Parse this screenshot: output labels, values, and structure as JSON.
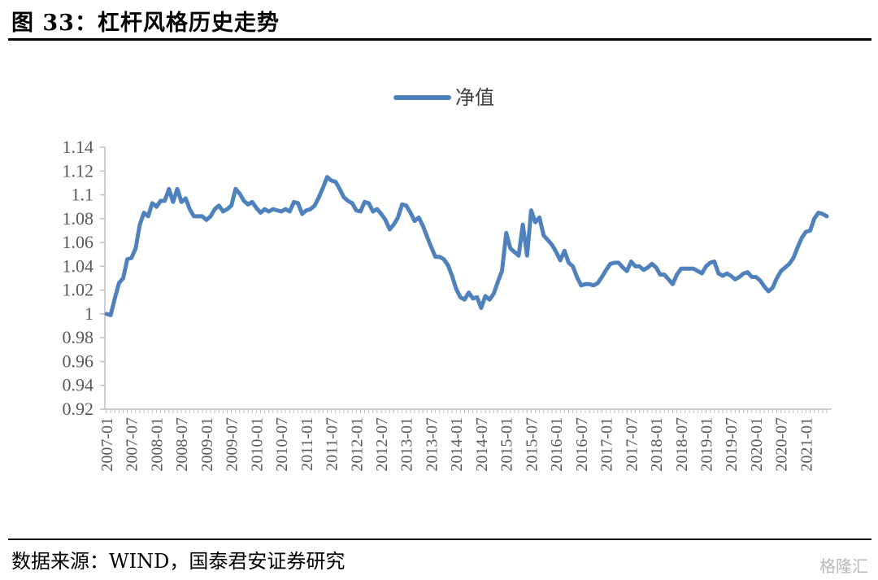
{
  "header": {
    "title": "图 33：杠杆风格历史走势"
  },
  "footer": {
    "source": "数据来源：WIND，国泰君安证券研究",
    "watermark": "格隆汇"
  },
  "colors": {
    "series": "#4F81BD",
    "axis": "#BFBFBF",
    "text": "#595959"
  },
  "chart_data": {
    "type": "line",
    "title": "",
    "xlabel": "",
    "ylabel": "",
    "ylim": [
      0.92,
      1.14
    ],
    "yticks": [
      "1.14",
      "1.12",
      "1.1",
      "1.08",
      "1.06",
      "1.04",
      "1.02",
      "1",
      "0.98",
      "0.96",
      "0.94",
      "0.92"
    ],
    "xticks": [
      "2007-01",
      "2007-07",
      "2008-01",
      "2008-07",
      "2009-01",
      "2009-07",
      "2010-01",
      "2010-07",
      "2011-01",
      "2011-07",
      "2012-01",
      "2012-07",
      "2013-01",
      "2013-07",
      "2014-01",
      "2014-07",
      "2015-01",
      "2015-07",
      "2016-01",
      "2016-07",
      "2017-01",
      "2017-07",
      "2018-01",
      "2018-07",
      "2019-01",
      "2019-07",
      "2020-01",
      "2020-07",
      "2021-01"
    ],
    "legend": {
      "position": "top"
    },
    "grid": false,
    "series": [
      {
        "name": "净值",
        "x": [
          "2007-01",
          "2007-02",
          "2007-03",
          "2007-04",
          "2007-05",
          "2007-06",
          "2007-07",
          "2007-08",
          "2007-09",
          "2007-10",
          "2007-11",
          "2007-12",
          "2008-01",
          "2008-02",
          "2008-03",
          "2008-04",
          "2008-05",
          "2008-06",
          "2008-07",
          "2008-08",
          "2008-09",
          "2008-10",
          "2008-11",
          "2008-12",
          "2009-01",
          "2009-02",
          "2009-03",
          "2009-04",
          "2009-05",
          "2009-06",
          "2009-07",
          "2009-08",
          "2009-09",
          "2009-10",
          "2009-11",
          "2009-12",
          "2010-01",
          "2010-02",
          "2010-03",
          "2010-04",
          "2010-05",
          "2010-06",
          "2010-07",
          "2010-08",
          "2010-09",
          "2010-10",
          "2010-11",
          "2010-12",
          "2011-01",
          "2011-02",
          "2011-03",
          "2011-04",
          "2011-05",
          "2011-06",
          "2011-07",
          "2011-08",
          "2011-09",
          "2011-10",
          "2011-11",
          "2011-12",
          "2012-01",
          "2012-02",
          "2012-03",
          "2012-04",
          "2012-05",
          "2012-06",
          "2012-07",
          "2012-08",
          "2012-09",
          "2012-10",
          "2012-11",
          "2012-12",
          "2013-01",
          "2013-02",
          "2013-03",
          "2013-04",
          "2013-05",
          "2013-06",
          "2013-07",
          "2013-08",
          "2013-09",
          "2013-10",
          "2013-11",
          "2013-12",
          "2014-01",
          "2014-02",
          "2014-03",
          "2014-04",
          "2014-05",
          "2014-06",
          "2014-07",
          "2014-08",
          "2014-09",
          "2014-10",
          "2014-11",
          "2014-12",
          "2015-01",
          "2015-02",
          "2015-03",
          "2015-04",
          "2015-05",
          "2015-06",
          "2015-07",
          "2015-08",
          "2015-09",
          "2015-10",
          "2015-11",
          "2015-12",
          "2016-01",
          "2016-02",
          "2016-03",
          "2016-04",
          "2016-05",
          "2016-06",
          "2016-07",
          "2016-08",
          "2016-09",
          "2016-10",
          "2016-11",
          "2016-12",
          "2017-01",
          "2017-02",
          "2017-03",
          "2017-04",
          "2017-05",
          "2017-06",
          "2017-07",
          "2017-08",
          "2017-09",
          "2017-10",
          "2017-11",
          "2017-12",
          "2018-01",
          "2018-02",
          "2018-03",
          "2018-04",
          "2018-05",
          "2018-06",
          "2018-07",
          "2018-08",
          "2018-09",
          "2018-10",
          "2018-11",
          "2018-12",
          "2019-01",
          "2019-02",
          "2019-03",
          "2019-04",
          "2019-05",
          "2019-06",
          "2019-07",
          "2019-08",
          "2019-09",
          "2019-10",
          "2019-11",
          "2019-12",
          "2020-01",
          "2020-02",
          "2020-03",
          "2020-04",
          "2020-05",
          "2020-06",
          "2020-07",
          "2020-08",
          "2020-09",
          "2020-10",
          "2020-11",
          "2020-12",
          "2021-01",
          "2021-02",
          "2021-03",
          "2021-04",
          "2021-05",
          "2021-06"
        ],
        "values": [
          1.0,
          0.999,
          1.013,
          1.026,
          1.03,
          1.046,
          1.047,
          1.055,
          1.075,
          1.085,
          1.082,
          1.093,
          1.09,
          1.095,
          1.095,
          1.105,
          1.094,
          1.105,
          1.094,
          1.097,
          1.088,
          1.082,
          1.082,
          1.082,
          1.079,
          1.082,
          1.088,
          1.091,
          1.086,
          1.088,
          1.091,
          1.105,
          1.101,
          1.095,
          1.092,
          1.094,
          1.089,
          1.085,
          1.088,
          1.086,
          1.088,
          1.087,
          1.086,
          1.088,
          1.086,
          1.094,
          1.093,
          1.084,
          1.087,
          1.088,
          1.091,
          1.098,
          1.106,
          1.115,
          1.112,
          1.111,
          1.105,
          1.098,
          1.095,
          1.093,
          1.087,
          1.086,
          1.094,
          1.093,
          1.086,
          1.088,
          1.084,
          1.079,
          1.071,
          1.075,
          1.081,
          1.092,
          1.091,
          1.085,
          1.078,
          1.081,
          1.074,
          1.065,
          1.056,
          1.048,
          1.048,
          1.046,
          1.041,
          1.032,
          1.021,
          1.014,
          1.012,
          1.018,
          1.013,
          1.014,
          1.005,
          1.015,
          1.012,
          1.017,
          1.027,
          1.036,
          1.068,
          1.055,
          1.052,
          1.049,
          1.075,
          1.049,
          1.087,
          1.077,
          1.081,
          1.066,
          1.062,
          1.058,
          1.052,
          1.045,
          1.053,
          1.043,
          1.04,
          1.031,
          1.024,
          1.025,
          1.025,
          1.024,
          1.026,
          1.031,
          1.037,
          1.042,
          1.043,
          1.043,
          1.039,
          1.036,
          1.044,
          1.04,
          1.04,
          1.037,
          1.039,
          1.042,
          1.039,
          1.033,
          1.033,
          1.029,
          1.025,
          1.033,
          1.038,
          1.038,
          1.038,
          1.038,
          1.036,
          1.034,
          1.04,
          1.043,
          1.044,
          1.034,
          1.032,
          1.034,
          1.032,
          1.029,
          1.031,
          1.034,
          1.035,
          1.031,
          1.031,
          1.028,
          1.023,
          1.019,
          1.022,
          1.03,
          1.036,
          1.039,
          1.042,
          1.047,
          1.056,
          1.064,
          1.069,
          1.07,
          1.08,
          1.085,
          1.084,
          1.082
        ]
      }
    ]
  }
}
